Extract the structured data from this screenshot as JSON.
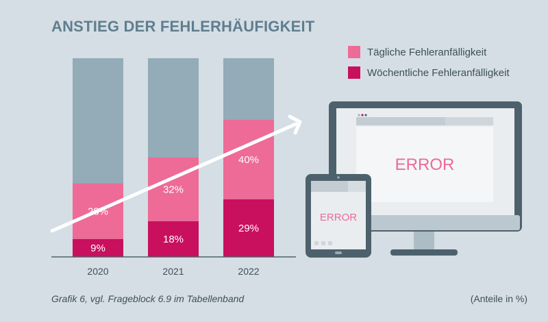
{
  "title": "ANSTIEG DER FEHLERHÄUFIGKEIT",
  "legend": [
    {
      "label": "Tägliche Fehleranfälligkeit",
      "color": "#ee6b97"
    },
    {
      "label": "Wöchentliche Fehleranfälligkeit",
      "color": "#c8105e"
    }
  ],
  "footer": {
    "source": "Grafik 6, vgl. Frageblock 6.9 im Tabellenband",
    "unit": "(Anteile in %)"
  },
  "illustration": {
    "monitor_text": "ERROR",
    "tablet_text": "ERROR"
  },
  "colors": {
    "background": "#d5dee4",
    "bar_remainder": "#94abb8",
    "daily": "#ee6b97",
    "weekly": "#c8105e",
    "device_frame": "#4d616c",
    "arrow": "#ffffff"
  },
  "chart_data": {
    "type": "bar",
    "stacked": true,
    "categories": [
      "2020",
      "2021",
      "2022"
    ],
    "series": [
      {
        "name": "Wöchentliche Fehleranfälligkeit",
        "values": [
          9,
          18,
          29
        ],
        "labels": [
          "9%",
          "18%",
          "29%"
        ]
      },
      {
        "name": "Tägliche Fehleranfälligkeit",
        "values": [
          28,
          32,
          40
        ],
        "labels": [
          "28%",
          "32%",
          "40%"
        ]
      }
    ],
    "ylim": [
      0,
      100
    ],
    "title": "ANSTIEG DER FEHLERHÄUFIGKEIT",
    "xlabel": "",
    "ylabel": "",
    "legend_position": "top-right",
    "grid": false
  }
}
